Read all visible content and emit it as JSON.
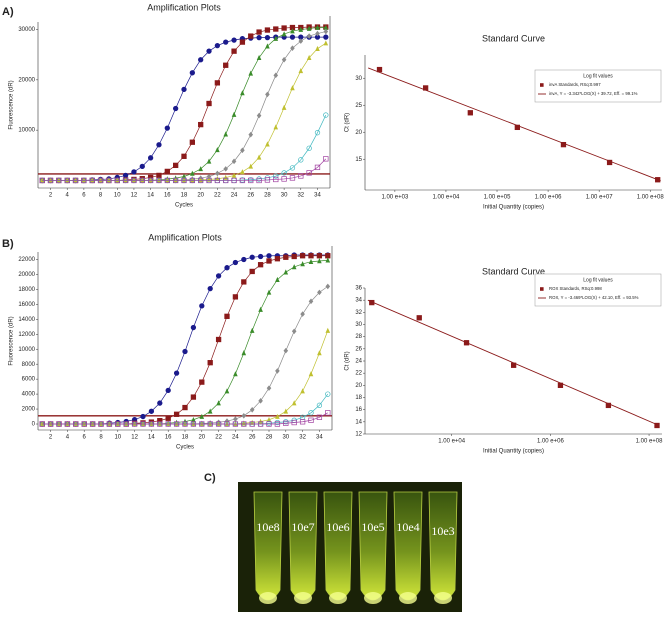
{
  "panels": [
    "A)",
    "B)",
    "C)"
  ],
  "chart_data": [
    {
      "type": "line",
      "title": "Amplification Plots",
      "xlabel": "Cycles",
      "ylabel": "Fluorescence (dR)",
      "x": [
        1,
        2,
        3,
        4,
        5,
        6,
        7,
        8,
        9,
        10,
        11,
        12,
        13,
        14,
        15,
        16,
        17,
        18,
        19,
        20,
        21,
        22,
        23,
        24,
        25,
        26,
        27,
        28,
        29,
        30,
        31,
        32,
        33,
        34,
        35
      ],
      "xlim": [
        0.5,
        35.5
      ],
      "xticks": [
        2,
        4,
        6,
        8,
        10,
        12,
        14,
        16,
        18,
        20,
        22,
        24,
        26,
        28,
        30,
        32,
        34
      ],
      "ylim": [
        -1500,
        31500
      ],
      "yticks": [
        10000,
        20000,
        30000
      ],
      "threshold": 1300,
      "threshold_color": "#8b1a1a",
      "series": [
        {
          "color": "#1a1a8c",
          "marker": "circle",
          "values": [
            0,
            0,
            0,
            0,
            0,
            0,
            100,
            200,
            300,
            600,
            1000,
            1700,
            2800,
            4500,
            7100,
            10400,
            14300,
            18100,
            21400,
            24000,
            25700,
            26800,
            27500,
            27900,
            28200,
            28300,
            28400,
            28400,
            28500,
            28500,
            28500,
            28500,
            28500,
            28500,
            28500
          ]
        },
        {
          "color": "#8b1a1a",
          "marker": "square",
          "values": [
            0,
            0,
            0,
            0,
            0,
            0,
            0,
            0,
            0,
            0,
            100,
            200,
            350,
            600,
            1000,
            1800,
            3000,
            4800,
            7600,
            11100,
            15300,
            19400,
            22900,
            25700,
            27500,
            28700,
            29500,
            29900,
            30100,
            30300,
            30400,
            30400,
            30500,
            30500,
            30500
          ]
        },
        {
          "color": "#3a8c2a",
          "marker": "triangle",
          "values": [
            0,
            0,
            0,
            0,
            0,
            0,
            0,
            0,
            0,
            0,
            0,
            0,
            0,
            0,
            150,
            270,
            460,
            790,
            1400,
            2300,
            3800,
            6100,
            9200,
            13100,
            17400,
            21300,
            24400,
            26700,
            28200,
            29100,
            29700,
            30000,
            30200,
            30400,
            30400
          ]
        },
        {
          "color": "#8c8c8c",
          "marker": "diamond",
          "values": [
            0,
            0,
            0,
            0,
            0,
            0,
            0,
            0,
            0,
            0,
            0,
            0,
            0,
            0,
            0,
            0,
            0,
            150,
            270,
            450,
            780,
            1400,
            2300,
            3800,
            6000,
            9100,
            12900,
            17100,
            20900,
            24000,
            26300,
            27700,
            28700,
            29200,
            29600
          ]
        },
        {
          "color": "#c0c030",
          "marker": "triangle",
          "values": [
            0,
            0,
            0,
            0,
            0,
            0,
            0,
            0,
            0,
            0,
            0,
            0,
            0,
            0,
            0,
            0,
            0,
            0,
            0,
            110,
            190,
            340,
            580,
            990,
            1700,
            2800,
            4600,
            7200,
            10600,
            14500,
            18400,
            21800,
            24400,
            26200,
            27300
          ]
        },
        {
          "color": "#40b8c0",
          "marker": "circle-open",
          "values": [
            0,
            0,
            0,
            0,
            0,
            0,
            0,
            0,
            0,
            0,
            0,
            0,
            0,
            0,
            0,
            0,
            0,
            0,
            0,
            0,
            0,
            0,
            0,
            0,
            100,
            170,
            300,
            520,
            880,
            1500,
            2500,
            4100,
            6400,
            9500,
            13000
          ]
        },
        {
          "color": "#a040a0",
          "marker": "square-open",
          "values": [
            0,
            0,
            0,
            0,
            0,
            0,
            0,
            0,
            0,
            0,
            0,
            0,
            0,
            0,
            0,
            0,
            0,
            0,
            0,
            0,
            0,
            0,
            0,
            0,
            0,
            0,
            0,
            100,
            200,
            300,
            500,
            900,
            1500,
            2600,
            4300
          ]
        }
      ]
    },
    {
      "type": "scatter",
      "title": "Standard Curve",
      "xlabel": "Initial Quantity (copies)",
      "ylabel": "Ct (dR)",
      "xscale": "log",
      "xlim": [
        260,
        170000000
      ],
      "xticks": [
        {
          "value": 1000,
          "label": "1.00 e+03"
        },
        {
          "value": 10000,
          "label": "1.00 e+04"
        },
        {
          "value": 100000,
          "label": "1.00 e+05"
        },
        {
          "value": 1000000,
          "label": "1.00 e+06"
        },
        {
          "value": 10000000,
          "label": "1.00 e+07"
        },
        {
          "value": 100000000,
          "label": "1.00 e+08"
        }
      ],
      "ylim": [
        9.3,
        34.3
      ],
      "yticks": [
        15,
        20,
        25,
        30
      ],
      "legend_title": "Log fit values",
      "series": [
        {
          "name": "invA Standards, RSq:0.997",
          "color": "#8b1a1a",
          "style": "markers",
          "x": [
            500,
            4000,
            30000,
            250000,
            2000000,
            16000000,
            140000000
          ],
          "values": [
            31.6,
            28.2,
            23.6,
            20.9,
            17.7,
            14.4,
            11.2
          ]
        },
        {
          "name": "invA, Y = -3.342*LOG(X) + 39.72, Eff. = 99.1%",
          "color": "#8b1a1a",
          "style": "line",
          "x": [
            300,
            160000000
          ],
          "values": [
            31.9,
            11.0
          ]
        }
      ]
    },
    {
      "type": "line",
      "title": "Amplification Plots",
      "xlabel": "Cycles",
      "ylabel": "Fluorescence (dR)",
      "x": [
        1,
        2,
        3,
        4,
        5,
        6,
        7,
        8,
        9,
        10,
        11,
        12,
        13,
        14,
        15,
        16,
        17,
        18,
        19,
        20,
        21,
        22,
        23,
        24,
        25,
        26,
        27,
        28,
        29,
        30,
        31,
        32,
        33,
        34,
        35
      ],
      "xlim": [
        0.5,
        35.5
      ],
      "xticks": [
        2,
        4,
        6,
        8,
        10,
        12,
        14,
        16,
        18,
        20,
        22,
        24,
        26,
        28,
        30,
        32,
        34
      ],
      "ylim": [
        -800,
        23000
      ],
      "yticks": [
        0,
        2000,
        4000,
        6000,
        8000,
        10000,
        12000,
        14000,
        16000,
        18000,
        20000,
        22000
      ],
      "threshold": 1100,
      "threshold_color": "#8b1a1a",
      "series": [
        {
          "color": "#1a1a8c",
          "marker": "circle",
          "values": [
            0,
            0,
            0,
            0,
            0,
            0,
            0,
            0,
            110,
            200,
            340,
            590,
            1000,
            1700,
            2800,
            4500,
            6800,
            9700,
            12900,
            15800,
            18100,
            19800,
            20900,
            21600,
            22000,
            22300,
            22400,
            22500,
            22500,
            22500,
            22600,
            22600,
            22600,
            22600,
            22600
          ]
        },
        {
          "color": "#8b1a1a",
          "marker": "square",
          "values": [
            0,
            0,
            0,
            0,
            0,
            0,
            0,
            0,
            0,
            0,
            0,
            90,
            150,
            260,
            450,
            770,
            1300,
            2200,
            3600,
            5600,
            8200,
            11300,
            14400,
            17000,
            19000,
            20400,
            21300,
            21800,
            22100,
            22300,
            22400,
            22500,
            22500,
            22500,
            22500
          ]
        },
        {
          "color": "#3a8c2a",
          "marker": "triangle",
          "values": [
            0,
            0,
            0,
            0,
            0,
            0,
            0,
            0,
            0,
            0,
            0,
            0,
            0,
            0,
            0,
            110,
            200,
            330,
            570,
            990,
            1700,
            2800,
            4400,
            6700,
            9500,
            12500,
            15300,
            17600,
            19300,
            20300,
            21000,
            21400,
            21700,
            21800,
            21900
          ]
        },
        {
          "color": "#8c8c8c",
          "marker": "diamond",
          "values": [
            0,
            0,
            0,
            0,
            0,
            0,
            0,
            0,
            0,
            0,
            0,
            0,
            0,
            0,
            0,
            0,
            0,
            0,
            0,
            70,
            130,
            230,
            390,
            660,
            1100,
            1900,
            3100,
            4800,
            7100,
            9800,
            12400,
            14700,
            16400,
            17600,
            18400
          ]
        },
        {
          "color": "#c0c030",
          "marker": "triangle",
          "values": [
            0,
            0,
            0,
            0,
            0,
            0,
            0,
            0,
            0,
            0,
            0,
            0,
            0,
            0,
            0,
            0,
            0,
            0,
            0,
            0,
            0,
            0,
            0,
            0,
            110,
            200,
            330,
            570,
            990,
            1700,
            2800,
            4400,
            6700,
            9500,
            12500
          ]
        },
        {
          "color": "#40b8c0",
          "marker": "circle-open",
          "values": [
            0,
            0,
            0,
            0,
            0,
            0,
            0,
            0,
            0,
            0,
            0,
            0,
            0,
            0,
            0,
            0,
            0,
            0,
            0,
            0,
            0,
            0,
            0,
            0,
            0,
            0,
            0,
            100,
            200,
            300,
            500,
            900,
            1500,
            2500,
            4000
          ]
        },
        {
          "color": "#a040a0",
          "marker": "square-open",
          "values": [
            0,
            0,
            0,
            0,
            0,
            0,
            0,
            0,
            0,
            0,
            0,
            0,
            0,
            0,
            0,
            0,
            0,
            0,
            0,
            0,
            0,
            0,
            0,
            0,
            0,
            0,
            0,
            0,
            0,
            100,
            200,
            300,
            500,
            900,
            1500
          ]
        }
      ]
    },
    {
      "type": "scatter",
      "title": "Standard Curve",
      "xlabel": "Initial Quantity (copies)",
      "ylabel": "Ct (dR)",
      "xscale": "log",
      "xlim": [
        175,
        183000000
      ],
      "xticks": [
        {
          "value": 10000,
          "label": "1.00 e+04"
        },
        {
          "value": 1000000,
          "label": "1.00 e+06"
        },
        {
          "value": 100000000,
          "label": "1.00 e+08"
        }
      ],
      "ylim": [
        12,
        36
      ],
      "yticks": [
        12,
        14,
        16,
        18,
        20,
        22,
        24,
        26,
        28,
        30,
        32,
        34,
        36
      ],
      "legend_title": "Log fit values",
      "series": [
        {
          "name": "ROX Standards, RSq:0.998",
          "color": "#8b1a1a",
          "style": "markers",
          "x": [
            240,
            2200,
            20000,
            180000,
            1600000,
            15000000,
            145000000
          ],
          "values": [
            33.6,
            31.1,
            27.0,
            23.3,
            20.0,
            16.7,
            13.4
          ]
        },
        {
          "name": "ROX, Y = -3.469*LOG(X) + 42.10, Eff. = 93.5%",
          "color": "#8b1a1a",
          "style": "line",
          "x": [
            200,
            160000000
          ],
          "values": [
            34.0,
            13.4
          ]
        }
      ]
    }
  ],
  "photo": {
    "tube_labels": [
      "10e8",
      "10e7",
      "10e6",
      "10e5",
      "10e4",
      "10e3"
    ]
  }
}
